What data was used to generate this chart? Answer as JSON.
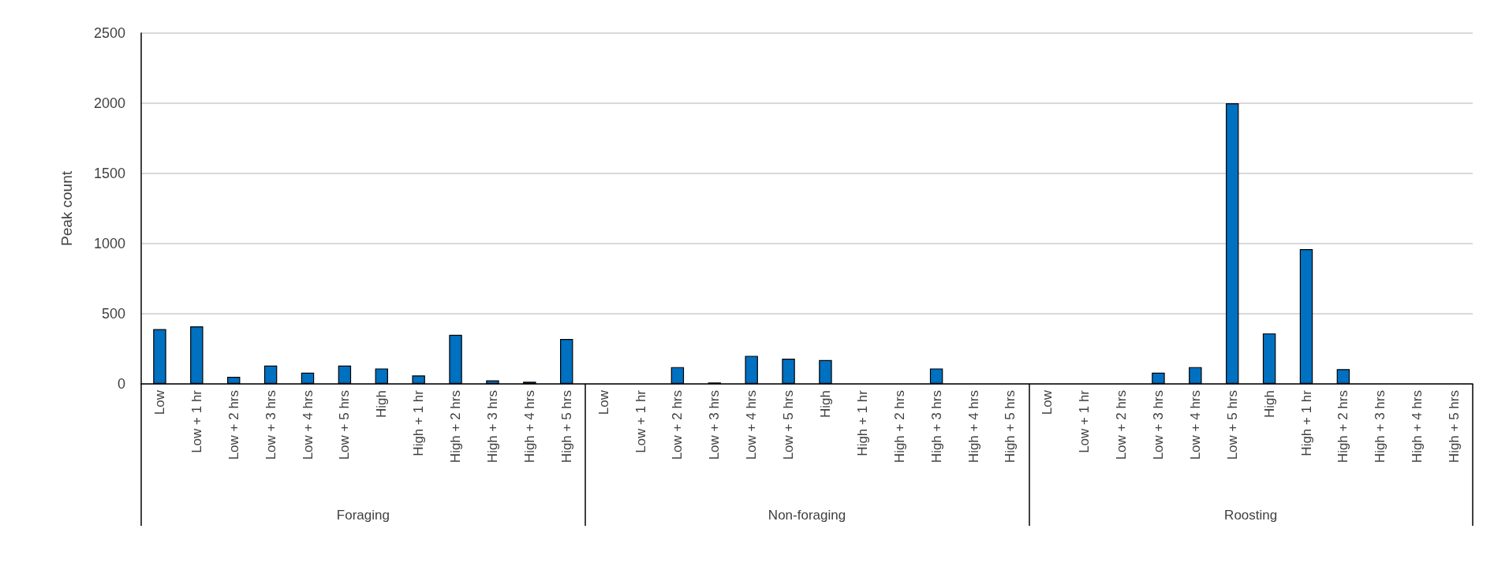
{
  "chart_data": {
    "type": "bar",
    "ylabel": "Peak count",
    "categories": [
      "Low",
      "Low + 1 hr",
      "Low + 2 hrs",
      "Low + 3 hrs",
      "Low + 4 hrs",
      "Low + 5 hrs",
      "High",
      "High + 1 hr",
      "High + 2 hrs",
      "High + 3 hrs",
      "High + 4 hrs",
      "High + 5 hrs",
      "Low",
      "Low + 1 hr",
      "Low + 2 hrs",
      "Low + 3 hrs",
      "Low + 4 hrs",
      "Low + 5 hrs",
      "High",
      "High + 1 hr",
      "High + 2 hrs",
      "High + 3 hrs",
      "High + 4 hrs",
      "High + 5 hrs",
      "Low",
      "Low + 1 hr",
      "Low + 2 hrs",
      "Low + 3 hrs",
      "Low + 4 hrs",
      "Low + 5 hrs",
      "High",
      "High + 1 hr",
      "High + 2 hrs",
      "High + 3 hrs",
      "High + 4 hrs",
      "High + 5 hrs"
    ],
    "values": [
      390,
      410,
      50,
      130,
      80,
      130,
      110,
      60,
      350,
      25,
      15,
      320,
      0,
      0,
      120,
      10,
      200,
      180,
      170,
      0,
      0,
      110,
      0,
      0,
      0,
      0,
      0,
      80,
      120,
      2000,
      360,
      960,
      105,
      0,
      0,
      0
    ],
    "color": "#0070c0",
    "ylim": [
      0,
      2500
    ],
    "yticks": [
      0,
      500,
      1000,
      1500,
      2000,
      2500
    ],
    "grid": "y",
    "annotations": [
      "Foraging",
      "Non-foraging",
      "Roosting"
    ]
  }
}
